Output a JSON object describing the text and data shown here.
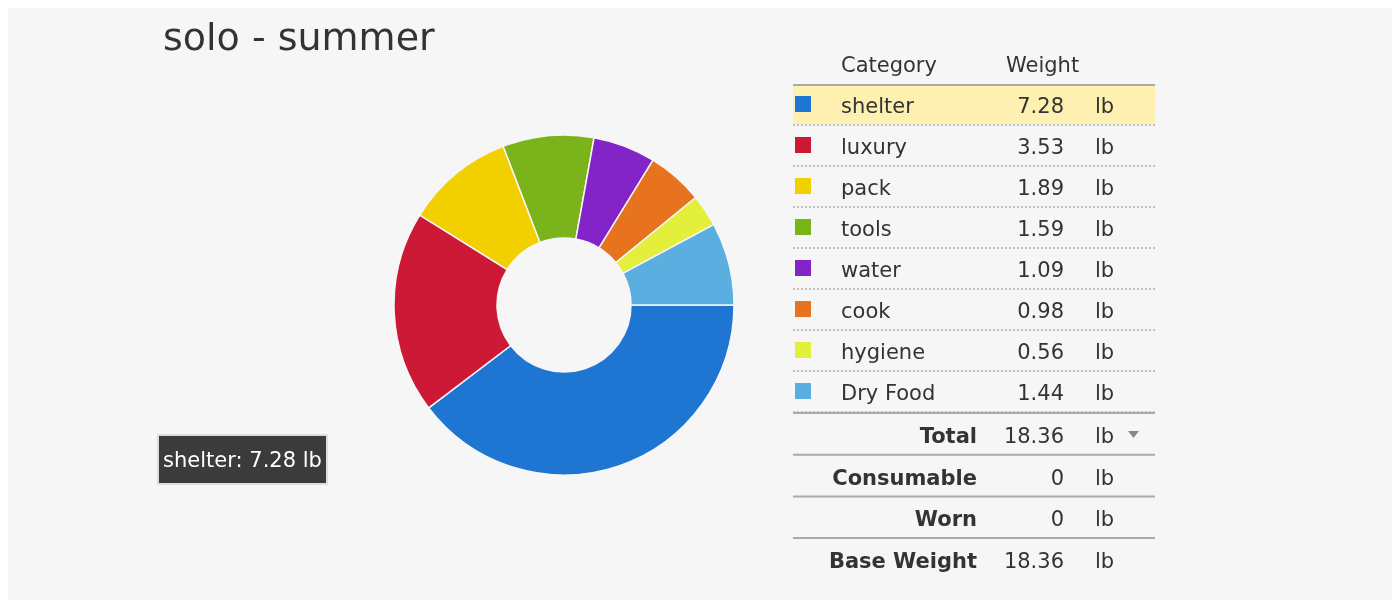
{
  "chart_data": {
    "type": "donut",
    "title": "solo - summer",
    "categories": [
      "shelter",
      "luxury",
      "pack",
      "tools",
      "water",
      "cook",
      "hygiene",
      "Dry Food"
    ],
    "values": [
      7.28,
      3.53,
      1.89,
      1.59,
      1.09,
      0.98,
      0.56,
      1.44
    ],
    "colors": [
      "#1e76d2",
      "#cc1a36",
      "#f2d000",
      "#7bb31a",
      "#8224c8",
      "#e8731e",
      "#e3ef3a",
      "#5aaee0"
    ],
    "value_labels": [
      "7.28 lb",
      "3.53 lb",
      "1.89 lb",
      "1.59 lb",
      "1.09 lb",
      "0.98 lb",
      "0.56 lb",
      "1.44 lb"
    ],
    "data_labels": true,
    "legend": "right",
    "annotations": [
      "Category",
      "Weight",
      "shelter: 7.28 lb",
      "Total",
      "18.36 lb",
      "Consumable",
      "0 lb",
      "Worn",
      "0 lb",
      "Base Weight",
      "18.36 lb"
    ]
  }
}
